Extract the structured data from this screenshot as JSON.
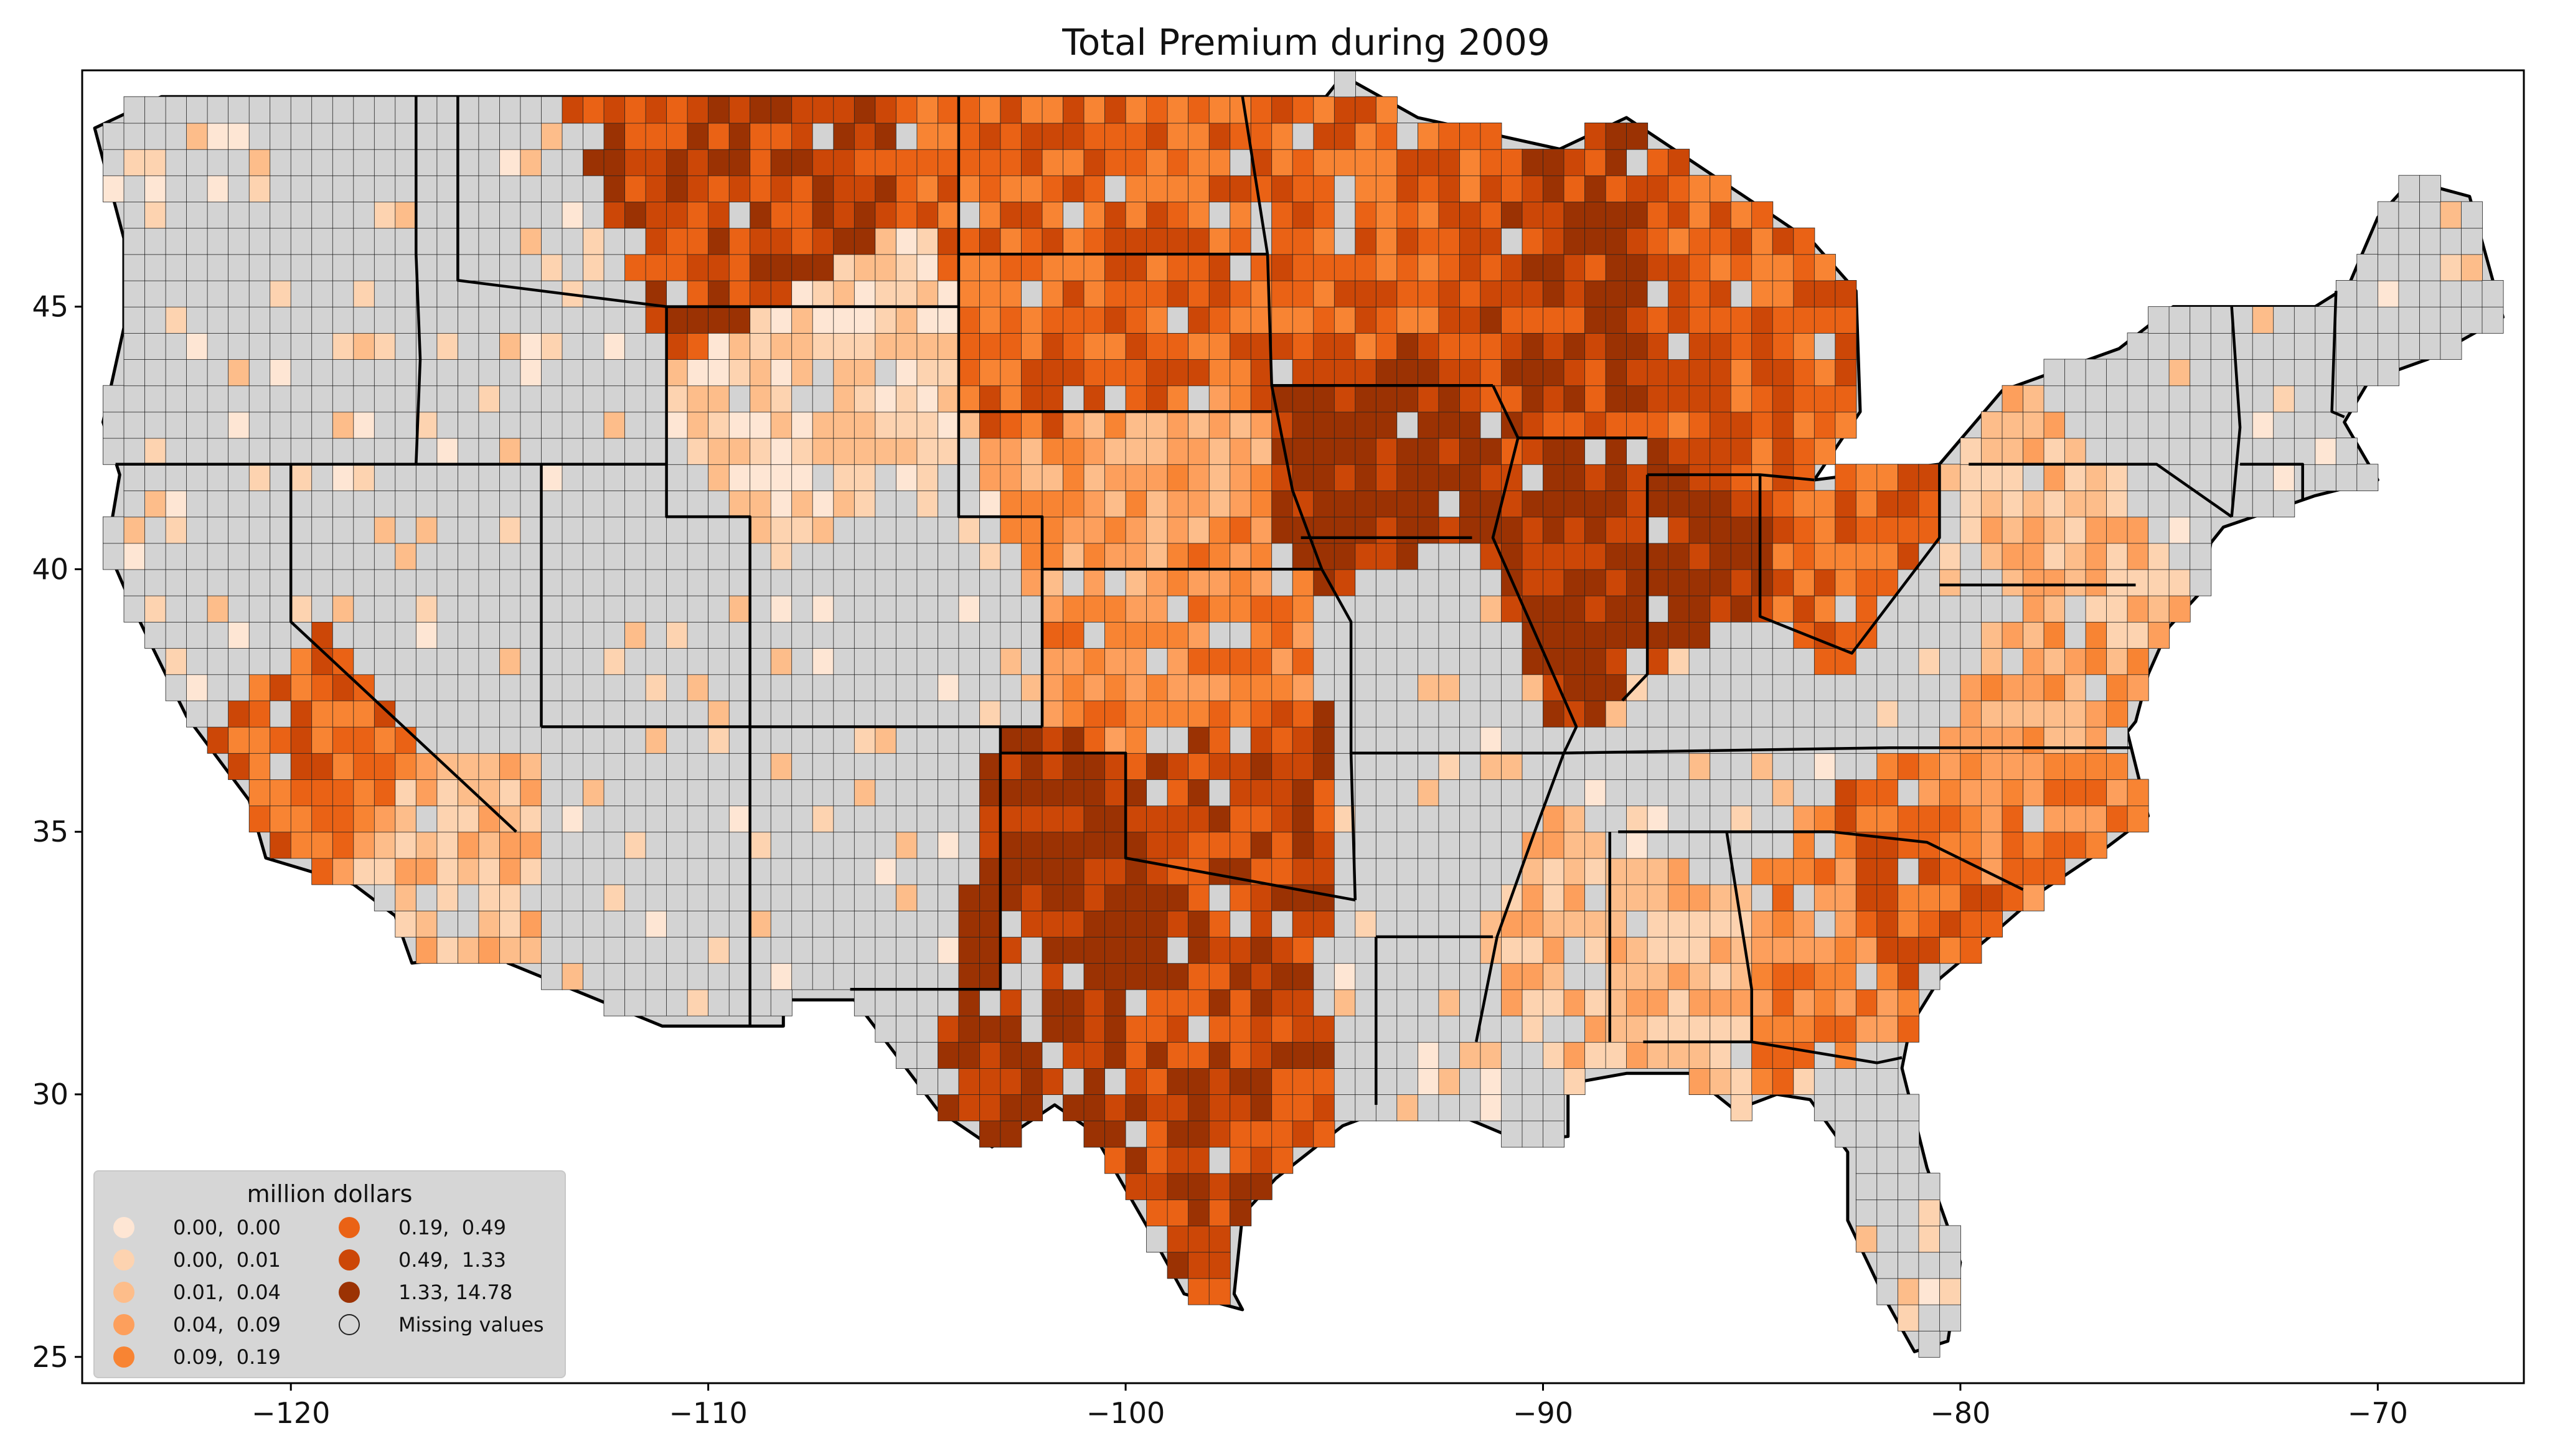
{
  "title": "Total  Premium during 2009",
  "legend": {
    "title": "million dollars",
    "items": [
      {
        "label": "0.00,  0.00",
        "color": "#fee6d4"
      },
      {
        "label": "0.00,  0.01",
        "color": "#fdd3b0"
      },
      {
        "label": "0.01,  0.04",
        "color": "#fdbd8a"
      },
      {
        "label": "0.04,  0.09",
        "color": "#fd9f5c"
      },
      {
        "label": "0.09,  0.19",
        "color": "#f88433"
      },
      {
        "label": "0.19,  0.49",
        "color": "#ea6215"
      },
      {
        "label": "0.49,  1.33",
        "color": "#cc4707"
      },
      {
        "label": "1.33, 14.78",
        "color": "#9b3203"
      },
      {
        "label": "Missing values",
        "color": "none"
      }
    ]
  },
  "axes": {
    "x_ticks": [
      "−120",
      "−110",
      "−100",
      "−90",
      "−80",
      "−70"
    ],
    "y_ticks": [
      "25",
      "30",
      "35",
      "40",
      "45"
    ]
  },
  "colors": {
    "missing": "#d3d3d3",
    "border": "#000000"
  },
  "map": {
    "region": "contiguous United States by county",
    "lon_range": [
      -125,
      -66.5
    ],
    "lat_range": [
      24.5,
      49.5
    ],
    "regions": [
      {
        "name": "WA",
        "lon": -120.5,
        "lat": 47.3,
        "level": "missing"
      },
      {
        "name": "OR",
        "lon": -120.5,
        "lat": 43.8,
        "level": "missing"
      },
      {
        "name": "CA-north",
        "lon": -121.5,
        "lat": 39.5,
        "level": "missing"
      },
      {
        "name": "CA-central",
        "lon": -119.5,
        "lat": 36.5,
        "level": 6
      },
      {
        "name": "CA-south",
        "lon": -116.5,
        "lat": 34.0,
        "level": 3
      },
      {
        "name": "NV",
        "lon": -116.8,
        "lat": 39.2,
        "level": "missing"
      },
      {
        "name": "ID",
        "lon": -114.5,
        "lat": 44.5,
        "level": "missing"
      },
      {
        "name": "MT",
        "lon": -109.5,
        "lat": 47.0,
        "level": 7
      },
      {
        "name": "WY",
        "lon": -107.5,
        "lat": 43.0,
        "level": 2
      },
      {
        "name": "UT",
        "lon": -111.6,
        "lat": 39.3,
        "level": "missing"
      },
      {
        "name": "CO",
        "lon": -105.5,
        "lat": 39.0,
        "level": "missing"
      },
      {
        "name": "AZ",
        "lon": -111.7,
        "lat": 34.2,
        "level": "missing"
      },
      {
        "name": "NM",
        "lon": -106.0,
        "lat": 34.4,
        "level": "missing"
      },
      {
        "name": "ND",
        "lon": -100.5,
        "lat": 47.5,
        "level": 6
      },
      {
        "name": "SD",
        "lon": -100.2,
        "lat": 44.4,
        "level": 6
      },
      {
        "name": "NE",
        "lon": -99.8,
        "lat": 41.5,
        "level": 4
      },
      {
        "name": "KS",
        "lon": -98.4,
        "lat": 38.5,
        "level": 5
      },
      {
        "name": "OK",
        "lon": -97.5,
        "lat": 35.5,
        "level": 7
      },
      {
        "name": "TX-panhandle",
        "lon": -101.5,
        "lat": 33.5,
        "level": 8
      },
      {
        "name": "TX-south",
        "lon": -98.0,
        "lat": 29.5,
        "level": 7
      },
      {
        "name": "MN",
        "lon": -94.3,
        "lat": 46.3,
        "level": 6
      },
      {
        "name": "IA",
        "lon": -93.5,
        "lat": 42.0,
        "level": 8
      },
      {
        "name": "MO",
        "lon": -92.5,
        "lat": 38.4,
        "level": "missing"
      },
      {
        "name": "AR",
        "lon": -92.4,
        "lat": 34.8,
        "level": "missing"
      },
      {
        "name": "LA",
        "lon": -92.0,
        "lat": 31.0,
        "level": "missing"
      },
      {
        "name": "WI",
        "lon": -89.8,
        "lat": 44.6,
        "level": 7
      },
      {
        "name": "IL",
        "lon": -89.2,
        "lat": 40.0,
        "level": 8
      },
      {
        "name": "MI",
        "lon": -84.7,
        "lat": 43.5,
        "level": 6
      },
      {
        "name": "IN",
        "lon": -86.3,
        "lat": 40.0,
        "level": 8
      },
      {
        "name": "OH",
        "lon": -82.8,
        "lat": 40.3,
        "level": 6
      },
      {
        "name": "KY",
        "lon": -85.3,
        "lat": 37.5,
        "level": "missing"
      },
      {
        "name": "TN",
        "lon": -86.3,
        "lat": 35.8,
        "level": "missing"
      },
      {
        "name": "MS",
        "lon": -89.7,
        "lat": 32.7,
        "level": 3
      },
      {
        "name": "AL",
        "lon": -86.8,
        "lat": 32.8,
        "level": 3
      },
      {
        "name": "GA",
        "lon": -83.4,
        "lat": 32.7,
        "level": 5
      },
      {
        "name": "FL",
        "lon": -82.0,
        "lat": 28.5,
        "level": "missing"
      },
      {
        "name": "SC",
        "lon": -80.9,
        "lat": 33.9,
        "level": 6
      },
      {
        "name": "NC",
        "lon": -79.3,
        "lat": 35.5,
        "level": 5
      },
      {
        "name": "VA",
        "lon": -78.6,
        "lat": 37.6,
        "level": 4
      },
      {
        "name": "WV",
        "lon": -80.6,
        "lat": 38.6,
        "level": "missing"
      },
      {
        "name": "PA",
        "lon": -77.6,
        "lat": 40.9,
        "level": 3
      },
      {
        "name": "NY",
        "lon": -75.5,
        "lat": 42.9,
        "level": "missing"
      },
      {
        "name": "NE-states",
        "lon": -71.5,
        "lat": 43.8,
        "level": "missing"
      },
      {
        "name": "ME",
        "lon": -69.2,
        "lat": 45.3,
        "level": "missing"
      }
    ]
  }
}
